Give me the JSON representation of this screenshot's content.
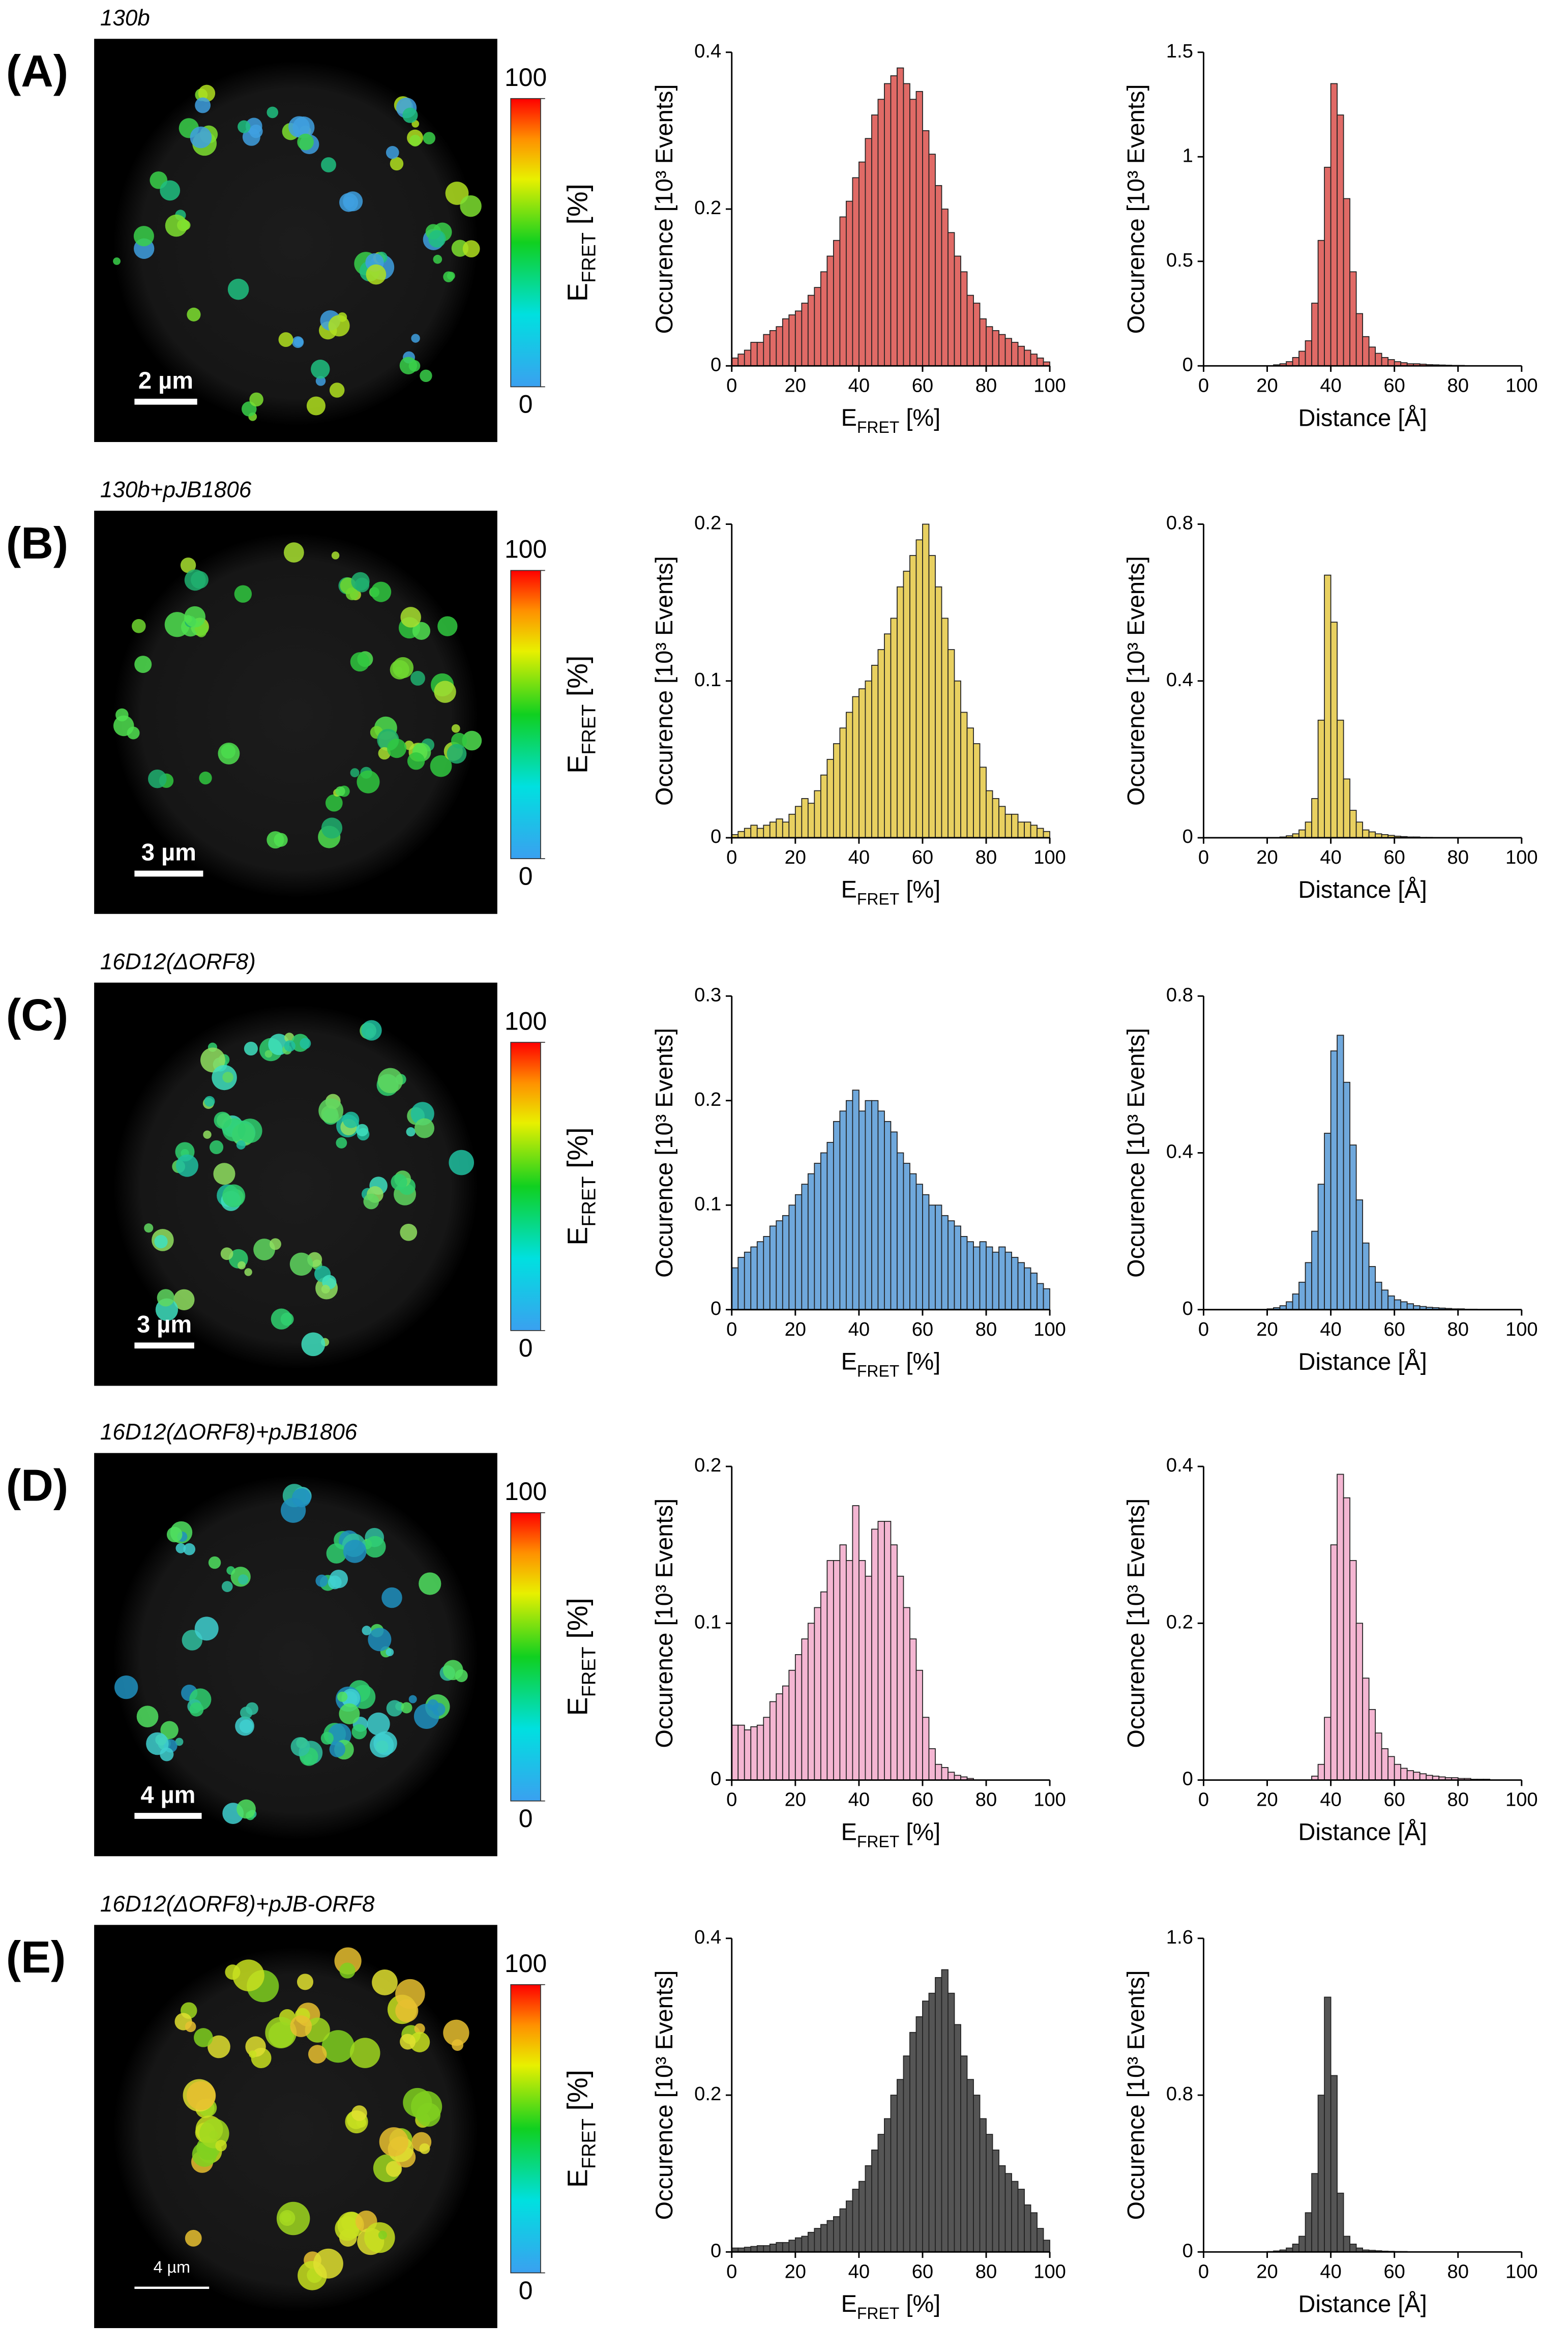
{
  "panels": [
    {
      "label": "(A)",
      "strain": "130b",
      "strain_color": "#e02020",
      "scale_bar": "2 µm",
      "colorbar": {
        "lim": [
          0,
          100
        ],
        "ticks": [
          0,
          100
        ],
        "label": [
          "E",
          "FRET",
          " [%]"
        ]
      }
    },
    {
      "label": "(B)",
      "strain": "130b+pJB1806",
      "strain_color": "#e8c020",
      "scale_bar": "3 µm",
      "colorbar": {
        "lim": [
          0,
          100
        ],
        "ticks": [
          0,
          100
        ],
        "label": [
          "E",
          "FRET",
          " [%]"
        ]
      }
    },
    {
      "label": "(C)",
      "strain": "16D12(ΔORF8)",
      "strain_color": "#2a7ec0",
      "scale_bar": "3 µm",
      "colorbar": {
        "lim": [
          0,
          100
        ],
        "ticks": [
          0,
          100
        ],
        "label": [
          "E",
          "FRET",
          " [%]"
        ]
      }
    },
    {
      "label": "(D)",
      "strain": "16D12(ΔORF8)+pJB1806",
      "strain_color": "#e8a0d8",
      "scale_bar": "4 µm",
      "colorbar": {
        "lim": [
          0,
          100
        ],
        "ticks": [
          0,
          100
        ],
        "label": [
          "E",
          "FRET",
          " [%]"
        ]
      }
    },
    {
      "label": "(E)",
      "strain": "16D12(ΔORF8)+pJB-ORF8",
      "strain_color": "#111111",
      "scale_bar": "4 µm",
      "colorbar": {
        "lim": [
          0,
          100
        ],
        "ticks": [
          0,
          100
        ],
        "label": [
          "E",
          "FRET",
          " [%]"
        ]
      }
    }
  ],
  "chart_data": [
    {
      "type": "histogram",
      "color": "#e06a66",
      "xlabel": [
        "E",
        "FRET",
        " [%]"
      ],
      "ylabel": "Occurence [10³ Events]",
      "bins": [
        0,
        2,
        4,
        6,
        8,
        10,
        12,
        14,
        16,
        18,
        20,
        22,
        24,
        26,
        28,
        30,
        32,
        34,
        36,
        38,
        40,
        42,
        44,
        46,
        48,
        50,
        52,
        54,
        56,
        58,
        60,
        62,
        64,
        66,
        68,
        70,
        72,
        74,
        76,
        78,
        80,
        82,
        84,
        86,
        88,
        90,
        92,
        94,
        96,
        98,
        100
      ],
      "values": [
        0.01,
        0.015,
        0.02,
        0.03,
        0.03,
        0.04,
        0.045,
        0.05,
        0.06,
        0.065,
        0.07,
        0.08,
        0.09,
        0.1,
        0.12,
        0.14,
        0.16,
        0.19,
        0.21,
        0.24,
        0.26,
        0.29,
        0.32,
        0.34,
        0.36,
        0.37,
        0.38,
        0.36,
        0.34,
        0.35,
        0.3,
        0.27,
        0.23,
        0.2,
        0.17,
        0.14,
        0.12,
        0.09,
        0.08,
        0.06,
        0.05,
        0.045,
        0.04,
        0.035,
        0.03,
        0.025,
        0.02,
        0.015,
        0.01,
        0.005
      ],
      "xlim": [
        0,
        100
      ],
      "xticks": [
        0,
        20,
        40,
        60,
        80,
        100
      ],
      "ylim": [
        0,
        0.4
      ],
      "yticks": [
        0,
        0.2,
        0.4
      ]
    },
    {
      "type": "histogram",
      "color": "#e06a66",
      "xlabel": "Distance [Å]",
      "ylabel": "Occurence [10³ Events]",
      "bins": [
        20,
        22,
        24,
        26,
        28,
        30,
        32,
        34,
        36,
        38,
        40,
        42,
        44,
        46,
        48,
        50,
        52,
        54,
        56,
        58,
        60,
        62,
        64,
        66,
        68,
        70,
        72,
        74,
        76,
        78,
        80,
        82,
        84,
        86,
        88,
        90
      ],
      "values": [
        0,
        0.005,
        0.01,
        0.02,
        0.04,
        0.07,
        0.12,
        0.3,
        0.6,
        0.95,
        1.35,
        1.2,
        0.8,
        0.45,
        0.25,
        0.14,
        0.09,
        0.06,
        0.04,
        0.03,
        0.02,
        0.015,
        0.01,
        0.01,
        0.008,
        0.006,
        0.005,
        0.004,
        0.003,
        0.002,
        0.002,
        0.001,
        0.001,
        0.001,
        0
      ],
      "xlim": [
        0,
        100
      ],
      "xticks": [
        0,
        20,
        40,
        60,
        80,
        100
      ],
      "ylim": [
        0,
        1.5
      ],
      "yticks": [
        0,
        0.5,
        1,
        1.5
      ]
    },
    {
      "type": "histogram",
      "color": "#e8d060",
      "xlabel": [
        "E",
        "FRET",
        " [%]"
      ],
      "ylabel": "Occurence [10³ Events]",
      "bins": [
        0,
        2,
        4,
        6,
        8,
        10,
        12,
        14,
        16,
        18,
        20,
        22,
        24,
        26,
        28,
        30,
        32,
        34,
        36,
        38,
        40,
        42,
        44,
        46,
        48,
        50,
        52,
        54,
        56,
        58,
        60,
        62,
        64,
        66,
        68,
        70,
        72,
        74,
        76,
        78,
        80,
        82,
        84,
        86,
        88,
        90,
        92,
        94,
        96,
        98,
        100
      ],
      "values": [
        0.002,
        0.004,
        0.006,
        0.008,
        0.006,
        0.008,
        0.01,
        0.012,
        0.01,
        0.015,
        0.02,
        0.025,
        0.022,
        0.03,
        0.04,
        0.05,
        0.06,
        0.07,
        0.08,
        0.09,
        0.095,
        0.1,
        0.11,
        0.12,
        0.13,
        0.14,
        0.16,
        0.17,
        0.18,
        0.19,
        0.2,
        0.18,
        0.16,
        0.14,
        0.12,
        0.1,
        0.08,
        0.07,
        0.06,
        0.045,
        0.03,
        0.025,
        0.02,
        0.015,
        0.015,
        0.01,
        0.01,
        0.008,
        0.006,
        0.004
      ],
      "xlim": [
        0,
        100
      ],
      "xticks": [
        0,
        20,
        40,
        60,
        80,
        100
      ],
      "ylim": [
        0,
        0.2
      ],
      "yticks": [
        0,
        0.1,
        0.2
      ]
    },
    {
      "type": "histogram",
      "color": "#e8d060",
      "xlabel": "Distance [Å]",
      "ylabel": "Occurence [10³ Events]",
      "bins": [
        20,
        22,
        24,
        26,
        28,
        30,
        32,
        34,
        36,
        38,
        40,
        42,
        44,
        46,
        48,
        50,
        52,
        54,
        56,
        58,
        60,
        62,
        64,
        66,
        68,
        70,
        72,
        74,
        76,
        78,
        80,
        82,
        84,
        86,
        88,
        90
      ],
      "values": [
        0,
        0,
        0.002,
        0.005,
        0.01,
        0.02,
        0.04,
        0.1,
        0.3,
        0.67,
        0.55,
        0.3,
        0.15,
        0.07,
        0.04,
        0.02,
        0.015,
        0.01,
        0.008,
        0.006,
        0.004,
        0.003,
        0.002,
        0.002,
        0.001,
        0.001,
        0,
        0,
        0,
        0,
        0,
        0,
        0,
        0,
        0
      ],
      "xlim": [
        0,
        100
      ],
      "xticks": [
        0,
        20,
        40,
        60,
        80,
        100
      ],
      "ylim": [
        0,
        0.8
      ],
      "yticks": [
        0,
        0.4,
        0.8
      ]
    },
    {
      "type": "histogram",
      "color": "#6fa8dc",
      "xlabel": [
        "E",
        "FRET",
        " [%]"
      ],
      "ylabel": "Occurence [10³ Events]",
      "bins": [
        0,
        2,
        4,
        6,
        8,
        10,
        12,
        14,
        16,
        18,
        20,
        22,
        24,
        26,
        28,
        30,
        32,
        34,
        36,
        38,
        40,
        42,
        44,
        46,
        48,
        50,
        52,
        54,
        56,
        58,
        60,
        62,
        64,
        66,
        68,
        70,
        72,
        74,
        76,
        78,
        80,
        82,
        84,
        86,
        88,
        90,
        92,
        94,
        96,
        98,
        100
      ],
      "values": [
        0.04,
        0.05,
        0.055,
        0.06,
        0.065,
        0.07,
        0.08,
        0.085,
        0.09,
        0.1,
        0.11,
        0.12,
        0.13,
        0.14,
        0.15,
        0.16,
        0.18,
        0.19,
        0.2,
        0.21,
        0.19,
        0.2,
        0.2,
        0.19,
        0.18,
        0.17,
        0.15,
        0.14,
        0.13,
        0.12,
        0.11,
        0.1,
        0.1,
        0.09,
        0.085,
        0.08,
        0.07,
        0.065,
        0.06,
        0.065,
        0.06,
        0.055,
        0.06,
        0.055,
        0.05,
        0.045,
        0.04,
        0.035,
        0.025,
        0.02
      ],
      "xlim": [
        0,
        100
      ],
      "xticks": [
        0,
        20,
        40,
        60,
        80,
        100
      ],
      "ylim": [
        0,
        0.3
      ],
      "yticks": [
        0,
        0.1,
        0.2,
        0.3
      ]
    },
    {
      "type": "histogram",
      "color": "#6fa8dc",
      "xlabel": "Distance [Å]",
      "ylabel": "Occurence [10³ Events]",
      "bins": [
        20,
        22,
        24,
        26,
        28,
        30,
        32,
        34,
        36,
        38,
        40,
        42,
        44,
        46,
        48,
        50,
        52,
        54,
        56,
        58,
        60,
        62,
        64,
        66,
        68,
        70,
        72,
        74,
        76,
        78,
        80,
        82,
        84,
        86,
        88,
        90
      ],
      "values": [
        0.002,
        0.005,
        0.01,
        0.02,
        0.04,
        0.07,
        0.12,
        0.2,
        0.32,
        0.45,
        0.66,
        0.7,
        0.58,
        0.42,
        0.28,
        0.17,
        0.11,
        0.07,
        0.05,
        0.035,
        0.025,
        0.02,
        0.015,
        0.01,
        0.008,
        0.006,
        0.005,
        0.004,
        0.003,
        0.002,
        0.002,
        0.001,
        0.001,
        0,
        0
      ],
      "xlim": [
        0,
        100
      ],
      "xticks": [
        0,
        20,
        40,
        60,
        80,
        100
      ],
      "ylim": [
        0,
        0.8
      ],
      "yticks": [
        0,
        0.4,
        0.8
      ]
    },
    {
      "type": "histogram",
      "color": "#f4b6d2",
      "xlabel": [
        "E",
        "FRET",
        " [%]"
      ],
      "ylabel": "Occurence [10³ Events]",
      "bins": [
        0,
        2,
        4,
        6,
        8,
        10,
        12,
        14,
        16,
        18,
        20,
        22,
        24,
        26,
        28,
        30,
        32,
        34,
        36,
        38,
        40,
        42,
        44,
        46,
        48,
        50,
        52,
        54,
        56,
        58,
        60,
        62,
        64,
        66,
        68,
        70,
        72,
        74,
        76,
        78,
        80,
        82,
        84,
        86,
        88,
        90,
        92,
        94,
        96,
        98,
        100
      ],
      "values": [
        0.035,
        0.035,
        0.032,
        0.034,
        0.035,
        0.04,
        0.05,
        0.055,
        0.06,
        0.07,
        0.08,
        0.09,
        0.1,
        0.11,
        0.12,
        0.14,
        0.14,
        0.15,
        0.14,
        0.175,
        0.14,
        0.13,
        0.16,
        0.165,
        0.165,
        0.15,
        0.13,
        0.11,
        0.09,
        0.07,
        0.04,
        0.02,
        0.01,
        0.008,
        0.005,
        0.003,
        0.002,
        0.001,
        0,
        0,
        0,
        0,
        0,
        0,
        0,
        0,
        0,
        0,
        0,
        0
      ],
      "xlim": [
        0,
        100
      ],
      "xticks": [
        0,
        20,
        40,
        60,
        80,
        100
      ],
      "ylim": [
        0,
        0.2
      ],
      "yticks": [
        0,
        0.1,
        0.2
      ]
    },
    {
      "type": "histogram",
      "color": "#f4b6d2",
      "xlabel": "Distance [Å]",
      "ylabel": "Occurence [10³ Events]",
      "bins": [
        20,
        22,
        24,
        26,
        28,
        30,
        32,
        34,
        36,
        38,
        40,
        42,
        44,
        46,
        48,
        50,
        52,
        54,
        56,
        58,
        60,
        62,
        64,
        66,
        68,
        70,
        72,
        74,
        76,
        78,
        80,
        82,
        84,
        86,
        88,
        90
      ],
      "values": [
        0,
        0,
        0,
        0,
        0,
        0,
        0,
        0.005,
        0.02,
        0.08,
        0.3,
        0.39,
        0.36,
        0.28,
        0.2,
        0.13,
        0.09,
        0.06,
        0.04,
        0.03,
        0.02,
        0.015,
        0.012,
        0.01,
        0.008,
        0.006,
        0.005,
        0.004,
        0.003,
        0.003,
        0.002,
        0.002,
        0.001,
        0.001,
        0.001
      ],
      "xlim": [
        0,
        100
      ],
      "xticks": [
        0,
        20,
        40,
        60,
        80,
        100
      ],
      "ylim": [
        0,
        0.4
      ],
      "yticks": [
        0,
        0.2,
        0.4
      ]
    },
    {
      "type": "histogram",
      "color": "#555555",
      "xlabel": [
        "E",
        "FRET",
        " [%]"
      ],
      "ylabel": "Occurence [10³ Events]",
      "bins": [
        0,
        2,
        4,
        6,
        8,
        10,
        12,
        14,
        16,
        18,
        20,
        22,
        24,
        26,
        28,
        30,
        32,
        34,
        36,
        38,
        40,
        42,
        44,
        46,
        48,
        50,
        52,
        54,
        56,
        58,
        60,
        62,
        64,
        66,
        68,
        70,
        72,
        74,
        76,
        78,
        80,
        82,
        84,
        86,
        88,
        90,
        92,
        94,
        96,
        98,
        100
      ],
      "values": [
        0.005,
        0.005,
        0.006,
        0.007,
        0.008,
        0.008,
        0.01,
        0.012,
        0.012,
        0.015,
        0.018,
        0.02,
        0.025,
        0.03,
        0.035,
        0.04,
        0.045,
        0.055,
        0.065,
        0.08,
        0.09,
        0.11,
        0.13,
        0.15,
        0.17,
        0.2,
        0.22,
        0.25,
        0.28,
        0.3,
        0.32,
        0.33,
        0.35,
        0.36,
        0.33,
        0.29,
        0.25,
        0.22,
        0.2,
        0.17,
        0.15,
        0.13,
        0.11,
        0.1,
        0.09,
        0.08,
        0.06,
        0.05,
        0.03,
        0.015
      ],
      "xlim": [
        0,
        100
      ],
      "xticks": [
        0,
        20,
        40,
        60,
        80,
        100
      ],
      "ylim": [
        0,
        0.4
      ],
      "yticks": [
        0,
        0.2,
        0.4
      ]
    },
    {
      "type": "histogram",
      "color": "#555555",
      "xlabel": "Distance [Å]",
      "ylabel": "Occurence [10³ Events]",
      "bins": [
        20,
        22,
        24,
        26,
        28,
        30,
        32,
        34,
        36,
        38,
        40,
        42,
        44,
        46,
        48,
        50,
        52,
        54,
        56,
        58,
        60,
        62,
        64,
        66,
        68,
        70,
        72,
        74,
        76,
        78,
        80,
        82,
        84,
        86,
        88,
        90
      ],
      "values": [
        0.002,
        0.005,
        0.01,
        0.02,
        0.04,
        0.08,
        0.2,
        0.4,
        0.8,
        1.3,
        0.9,
        0.3,
        0.08,
        0.04,
        0.02,
        0.01,
        0.008,
        0.006,
        0.004,
        0.003,
        0.002,
        0.002,
        0.001,
        0.001,
        0,
        0,
        0,
        0,
        0,
        0,
        0,
        0,
        0,
        0,
        0
      ],
      "xlim": [
        0,
        100
      ],
      "xticks": [
        0,
        20,
        40,
        60,
        80,
        100
      ],
      "ylim": [
        0,
        1.6
      ],
      "yticks": [
        0,
        0.8,
        1.6
      ]
    }
  ]
}
